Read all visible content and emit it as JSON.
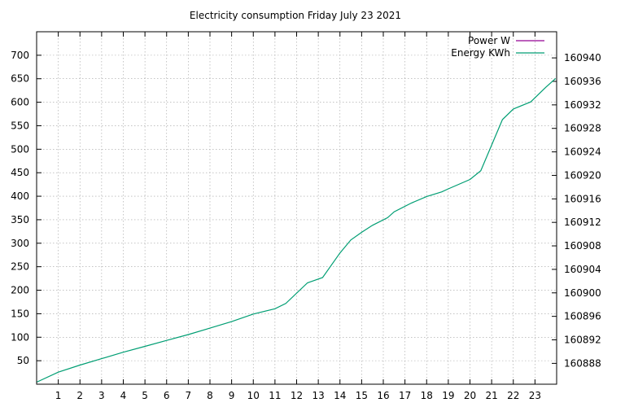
{
  "chart_data": {
    "type": "line",
    "title": "Electricity consumption Friday July 23 2021",
    "xlabel": "",
    "ylabel": "",
    "y2label": "",
    "xlim": [
      0,
      24
    ],
    "ylim": [
      0,
      750
    ],
    "y2lim": [
      160884.45,
      160944.45
    ],
    "x_ticks": [
      "1",
      "2",
      "3",
      "4",
      "5",
      "6",
      "7",
      "8",
      "9",
      "10",
      "11",
      "12",
      "13",
      "14",
      "15",
      "16",
      "17",
      "18",
      "19",
      "20",
      "21",
      "22",
      "23"
    ],
    "y_ticks": [
      "50",
      "100",
      "150",
      "200",
      "250",
      "300",
      "350",
      "400",
      "450",
      "500",
      "550",
      "600",
      "650",
      "700"
    ],
    "y2_ticks": [
      "160888",
      "160892",
      "160896",
      "160900",
      "160904",
      "160908",
      "160912",
      "160916",
      "160920",
      "160924",
      "160928",
      "160932",
      "160936",
      "160940"
    ],
    "grid": true,
    "legend": "top-right",
    "series": [
      {
        "name": "Power W",
        "color": "#940094",
        "axis": "y",
        "x": [],
        "y": []
      },
      {
        "name": "Energy KWh",
        "color": "#009e73",
        "axis": "y2",
        "x": [
          0,
          1,
          2,
          3,
          4,
          5,
          6,
          7,
          8,
          9,
          10,
          11,
          11.5,
          12.5,
          13.2,
          14,
          14.5,
          15,
          15.5,
          16.2,
          16.5,
          17.3,
          18,
          18.7,
          19,
          20,
          20.5,
          21.5,
          22,
          22.8,
          23.5,
          23.95
        ],
        "y": [
          160884.8,
          160886.5,
          160887.7,
          160888.8,
          160889.9,
          160890.9,
          160891.9,
          160892.9,
          160894.0,
          160895.1,
          160896.4,
          160897.3,
          160898.2,
          160901.7,
          160902.6,
          160906.8,
          160909.0,
          160910.3,
          160911.5,
          160912.8,
          160913.8,
          160915.3,
          160916.4,
          160917.2,
          160917.7,
          160919.3,
          160920.8,
          160929.5,
          160931.3,
          160932.5,
          160935.0,
          160936.5
        ]
      }
    ]
  }
}
